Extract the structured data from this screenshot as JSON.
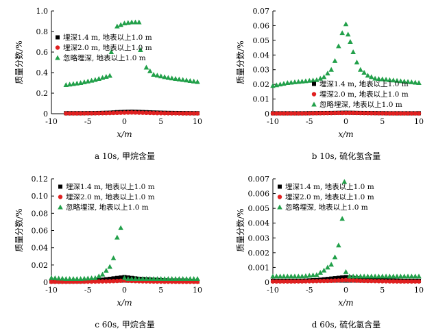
{
  "chart_data": [
    {
      "type": "scatter",
      "caption": "a  10s, 甲烷含量",
      "xlabel": "x/m",
      "ylabel": "质量分数/%",
      "xlim": [
        -10,
        10
      ],
      "ylim": [
        0,
        1.0
      ],
      "xticks": [
        "-10",
        "-5",
        "0",
        "5",
        "10"
      ],
      "yticks": [
        "0",
        "0.2",
        "0.4",
        "0.6",
        "0.8",
        "1.0"
      ],
      "legend_position": "upper-left",
      "series": [
        {
          "name": "埋深1.4 m, 地表以上1.0 m",
          "marker": "square",
          "color": "#000000",
          "x": [
            -8,
            -6,
            -4,
            -2,
            -1,
            0,
            1,
            2,
            3,
            4,
            6,
            8,
            10
          ],
          "y": [
            0.005,
            0.005,
            0.006,
            0.01,
            0.015,
            0.018,
            0.02,
            0.018,
            0.015,
            0.012,
            0.008,
            0.006,
            0.005
          ]
        },
        {
          "name": "埋深2.0 m, 地表以上1.0 m",
          "marker": "circle",
          "color": "#e02020",
          "x": [
            -8,
            -6,
            -4,
            -2,
            -1,
            0,
            1,
            2,
            3,
            4,
            6,
            8,
            10
          ],
          "y": [
            0.003,
            0.003,
            0.004,
            0.006,
            0.008,
            0.01,
            0.012,
            0.01,
            0.008,
            0.006,
            0.004,
            0.003,
            0.003
          ]
        },
        {
          "name": "忽略埋深, 地表以上1.0 m",
          "marker": "triangle",
          "color": "#22a04a",
          "x": [
            -8,
            -6,
            -4,
            -2,
            -1.8,
            -1,
            0,
            1,
            2,
            2.2,
            3,
            4,
            6,
            8,
            10
          ],
          "y": [
            0.28,
            0.3,
            0.33,
            0.37,
            0.6,
            0.85,
            0.88,
            0.89,
            0.89,
            0.62,
            0.45,
            0.38,
            0.35,
            0.33,
            0.31
          ]
        }
      ]
    },
    {
      "type": "scatter",
      "caption": "b  10s, 硫化氢含量",
      "xlabel": "x/m",
      "ylabel": "质量分数/%",
      "xlim": [
        -10,
        10
      ],
      "ylim": [
        0,
        0.07
      ],
      "xticks": [
        "-10",
        "-5",
        "0",
        "5",
        "10"
      ],
      "yticks": [
        "0",
        "0.01",
        "0.02",
        "0.03",
        "0.04",
        "0.05",
        "0.06",
        "0.07"
      ],
      "legend_position": "center",
      "series": [
        {
          "name": "埋深1.4 m, 地表以上1.0 m",
          "marker": "square",
          "color": "#000000",
          "x": [
            -10,
            -8,
            -6,
            -4,
            -2,
            -1,
            0,
            1,
            2,
            4,
            6,
            8,
            10
          ],
          "y": [
            0.0003,
            0.0003,
            0.0003,
            0.0004,
            0.0005,
            0.0006,
            0.0007,
            0.0006,
            0.0005,
            0.0004,
            0.0003,
            0.0003,
            0.0003
          ]
        },
        {
          "name": "埋深2.0 m, 地表以上1.0 m",
          "marker": "circle",
          "color": "#e02020",
          "x": [
            -10,
            -8,
            -6,
            -4,
            -2,
            -1,
            0,
            1,
            2,
            4,
            6,
            8,
            10
          ],
          "y": [
            0.0002,
            0.0002,
            0.0002,
            0.0003,
            0.0004,
            0.0005,
            0.0005,
            0.0005,
            0.0004,
            0.0003,
            0.0002,
            0.0002,
            0.0002
          ]
        },
        {
          "name": "忽略埋深, 地表以上1.0 m",
          "marker": "triangle",
          "color": "#22a04a",
          "x": [
            -10,
            -8,
            -6,
            -4,
            -3,
            -2,
            -1.5,
            -1,
            -0.5,
            0,
            0.3,
            0.6,
            1,
            1.5,
            2,
            3,
            4,
            6,
            8,
            10
          ],
          "y": [
            0.019,
            0.021,
            0.022,
            0.023,
            0.025,
            0.03,
            0.036,
            0.046,
            0.055,
            0.061,
            0.054,
            0.049,
            0.042,
            0.035,
            0.03,
            0.026,
            0.024,
            0.023,
            0.022,
            0.021
          ]
        }
      ]
    },
    {
      "type": "scatter",
      "caption": "c  60s, 甲烷含量",
      "xlabel": "x/m",
      "ylabel": "质量分数/%",
      "xlim": [
        -10,
        10
      ],
      "ylim": [
        0,
        0.12
      ],
      "xticks": [
        "-10",
        "-5",
        "0",
        "5",
        "10"
      ],
      "yticks": [
        "0",
        "0.02",
        "0.04",
        "0.06",
        "0.08",
        "0.10",
        "0.12"
      ],
      "legend_position": "upper-left",
      "series": [
        {
          "name": "埋深1.4 m, 地表以上1.0 m",
          "marker": "square",
          "color": "#000000",
          "x": [
            -10,
            -8,
            -6,
            -4,
            -2,
            -1,
            0,
            1,
            2,
            4,
            6,
            8,
            10
          ],
          "y": [
            0.001,
            0.001,
            0.001,
            0.002,
            0.004,
            0.005,
            0.006,
            0.005,
            0.004,
            0.003,
            0.002,
            0.002,
            0.001
          ]
        },
        {
          "name": "埋深2.0 m, 地表以上1.0 m",
          "marker": "circle",
          "color": "#e02020",
          "x": [
            -10,
            -8,
            -6,
            -4,
            -2,
            -1,
            0,
            1,
            2,
            4,
            6,
            8,
            10
          ],
          "y": [
            0.0005,
            0.0005,
            0.0006,
            0.0008,
            0.0012,
            0.0015,
            0.002,
            0.0015,
            0.0012,
            0.0008,
            0.0006,
            0.0005,
            0.0005
          ]
        },
        {
          "name": "忽略埋深, 地表以上1.0 m",
          "marker": "triangle",
          "color": "#22a04a",
          "x": [
            -10,
            -8,
            -6,
            -4,
            -3,
            -2,
            -1.5,
            -1,
            -0.5,
            0,
            0.5,
            1,
            2,
            4,
            6,
            8,
            10
          ],
          "y": [
            0.005,
            0.004,
            0.004,
            0.005,
            0.009,
            0.018,
            0.028,
            0.052,
            0.063,
            0.005,
            0.004,
            0.004,
            0.004,
            0.004,
            0.004,
            0.004,
            0.004
          ]
        }
      ]
    },
    {
      "type": "scatter",
      "caption": "d  60s, 硫化氢含量",
      "xlabel": "x/m",
      "ylabel": "质量分数/%",
      "xlim": [
        -10,
        10
      ],
      "ylim": [
        0,
        0.007
      ],
      "xticks": [
        "-10",
        "-5",
        "0",
        "5",
        "10"
      ],
      "yticks": [
        "0",
        "0.001",
        "0.002",
        "0.003",
        "0.004",
        "0.005",
        "0.006",
        "0.007"
      ],
      "legend_position": "upper-left",
      "series": [
        {
          "name": "埋深1.4 m, 地表以上1.0 m",
          "marker": "square",
          "color": "#000000",
          "x": [
            -10,
            -8,
            -6,
            -4,
            -2,
            -1,
            0,
            1,
            2,
            4,
            6,
            8,
            10
          ],
          "y": [
            0.0001,
            0.0001,
            0.0001,
            0.00015,
            0.00025,
            0.0003,
            0.00035,
            0.0003,
            0.00025,
            0.00018,
            0.00012,
            0.0001,
            0.0001
          ]
        },
        {
          "name": "埋深2.0 m, 地表以上1.0 m",
          "marker": "circle",
          "color": "#e02020",
          "x": [
            -10,
            -8,
            -6,
            -4,
            -2,
            -1,
            0,
            1,
            2,
            4,
            6,
            8,
            10
          ],
          "y": [
            5e-05,
            5e-05,
            6e-05,
            8e-05,
            0.0001,
            0.00012,
            0.00015,
            0.00012,
            0.0001,
            8e-05,
            6e-05,
            5e-05,
            5e-05
          ]
        },
        {
          "name": "忽略埋深, 地表以上1.0 m",
          "marker": "triangle",
          "color": "#22a04a",
          "x": [
            -10,
            -8,
            -6,
            -4,
            -3,
            -2,
            -1.5,
            -1,
            -0.5,
            -0.2,
            0,
            0.5,
            1,
            2,
            4,
            6,
            8,
            10
          ],
          "y": [
            0.0004,
            0.0004,
            0.0004,
            0.0005,
            0.0008,
            0.0012,
            0.0017,
            0.0025,
            0.0043,
            0.0068,
            0.0007,
            0.0004,
            0.0004,
            0.0004,
            0.0004,
            0.0004,
            0.0004,
            0.0004
          ]
        }
      ]
    }
  ]
}
